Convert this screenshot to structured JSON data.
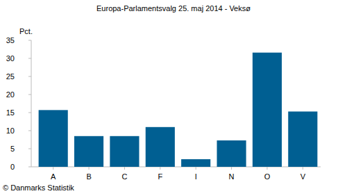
{
  "chart_data": {
    "type": "bar",
    "title": "Europa-Parlamentsvalg 25. maj 2014 - Veksø",
    "y_label": "Pct.",
    "source": "© Danmarks Statistik",
    "categories": [
      "A",
      "B",
      "C",
      "F",
      "I",
      "N",
      "O",
      "V"
    ],
    "values": [
      15.7,
      8.5,
      8.5,
      11.0,
      2.1,
      7.3,
      31.6,
      15.3
    ],
    "color": "#005f92",
    "ylim": [
      0,
      35
    ],
    "yticks": [
      0,
      5,
      10,
      15,
      20,
      25,
      30,
      35
    ],
    "grid": false
  }
}
